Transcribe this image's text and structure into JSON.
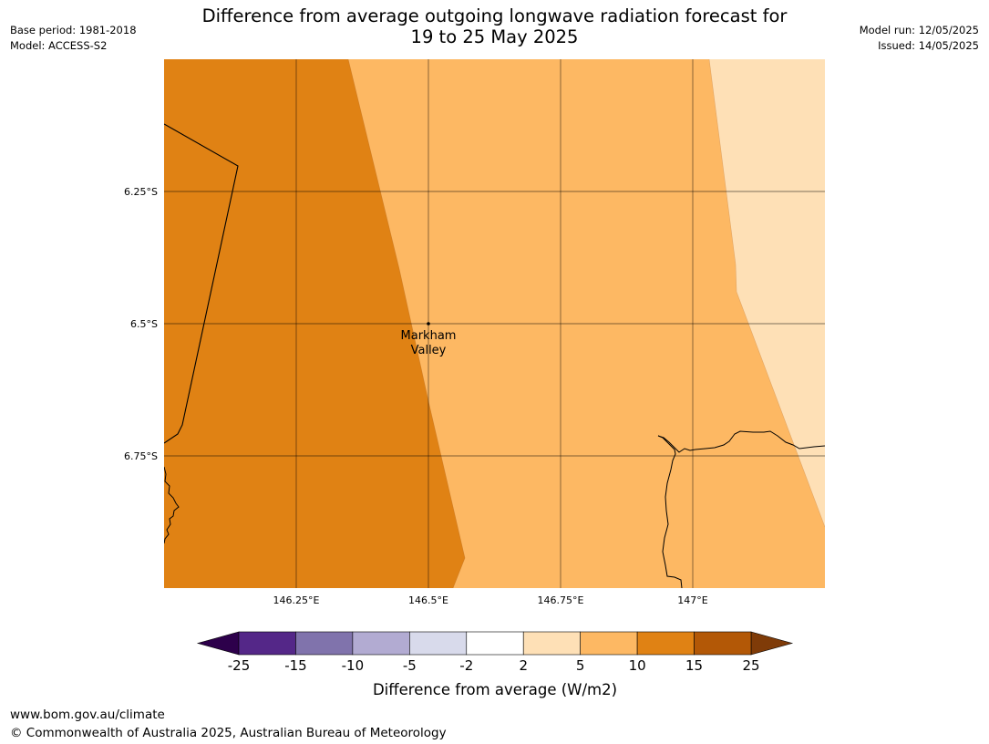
{
  "header": {
    "title_line1": "Difference from average outgoing longwave radiation forecast for",
    "title_line2": "19 to 25 May 2025",
    "base_period": "Base period: 1981-2018",
    "model": "Model: ACCESS-S2",
    "model_run": "Model run: 12/05/2025",
    "issued": "Issued: 14/05/2025"
  },
  "map": {
    "longitude_labels": [
      "146.25°E",
      "146.5°E",
      "146.75°E",
      "147°E"
    ],
    "latitude_labels": [
      "6.25°S",
      "6.5°S",
      "6.75°S"
    ],
    "place": {
      "name_line1": "Markham",
      "name_line2": "Valley",
      "lon": 146.5,
      "lat": -6.5
    },
    "region_colors": {
      "band_10_15": "#e08214",
      "band_5_10": "#fdb863",
      "band_2_5": "#fee0b6"
    }
  },
  "colorbar": {
    "tick_labels": [
      "-25",
      "-15",
      "-10",
      "-5",
      "-2",
      "2",
      "5",
      "10",
      "15",
      "25"
    ],
    "colors": [
      "#542788",
      "#8073ac",
      "#b2abd2",
      "#d8daeb",
      "#ffffff",
      "#fee0b6",
      "#fdb863",
      "#e08214",
      "#b35806"
    ],
    "under_color": "#2d004b",
    "over_color": "#7f3b08",
    "label": "Difference from average (W/m2)"
  },
  "footer": {
    "url": "www.bom.gov.au/climate",
    "copyright": "© Commonwealth of Australia 2025, Australian Bureau of Meteorology"
  }
}
